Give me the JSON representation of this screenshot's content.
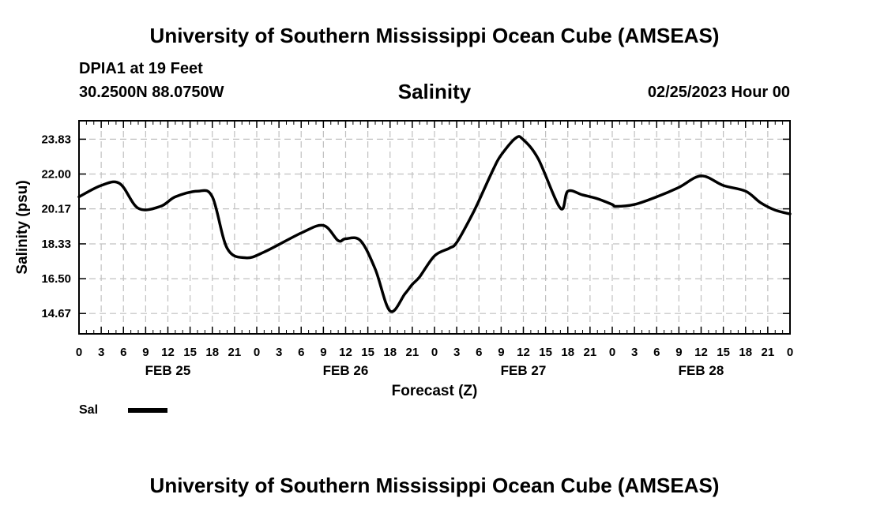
{
  "header": {
    "title": "University of Southern Mississippi Ocean Cube (AMSEAS)",
    "station": "DPIA1 at 19 Feet",
    "coords": "30.2500N  88.0750W",
    "variable": "Salinity",
    "run_time": "02/25/2023 Hour 00"
  },
  "footer": {
    "title": "University of Southern Mississippi Ocean Cube (AMSEAS)"
  },
  "legend": {
    "label": "Sal"
  },
  "colors": {
    "line": "#000000",
    "grid": "#c0c0c0"
  },
  "chart_data": {
    "type": "line",
    "title": "Salinity",
    "xlabel": "Forecast (Z)",
    "ylabel": "Salinity (psu)",
    "xlim": [
      0,
      96
    ],
    "ylim": [
      13.6,
      24.8
    ],
    "yticks": [
      14.67,
      16.5,
      18.33,
      20.17,
      22.0,
      23.83
    ],
    "ytick_labels": [
      "14.67",
      "16.50",
      "18.33",
      "20.17",
      "22.00",
      "23.83"
    ],
    "xticks": [
      0,
      3,
      6,
      9,
      12,
      15,
      18,
      21,
      24,
      27,
      30,
      33,
      36,
      39,
      42,
      45,
      48,
      51,
      54,
      57,
      60,
      63,
      66,
      69,
      72,
      75,
      78,
      81,
      84,
      87,
      90,
      93,
      96
    ],
    "xtick_labels": [
      "0",
      "3",
      "6",
      "9",
      "12",
      "15",
      "18",
      "21",
      "0",
      "3",
      "6",
      "9",
      "12",
      "15",
      "18",
      "21",
      "0",
      "3",
      "6",
      "9",
      "12",
      "15",
      "18",
      "21",
      "0",
      "3",
      "6",
      "9",
      "12",
      "15",
      "18",
      "21",
      "0"
    ],
    "date_labels": [
      {
        "x": 12,
        "label": "FEB 25"
      },
      {
        "x": 36,
        "label": "FEB 26"
      },
      {
        "x": 60,
        "label": "FEB 27"
      },
      {
        "x": 84,
        "label": "FEB 28"
      }
    ],
    "grid": true,
    "series": [
      {
        "name": "Sal",
        "x": [
          0,
          3,
          5.5,
          8,
          11,
          13,
          16,
          18,
          20,
          22.5,
          25,
          30,
          33,
          35,
          36,
          38,
          40,
          42,
          44,
          45,
          46,
          48,
          50,
          51,
          53,
          54,
          56,
          57,
          59,
          60,
          62,
          65,
          66,
          68,
          70,
          72,
          72.5,
          75,
          78,
          81,
          84,
          87,
          90,
          92,
          94,
          96
        ],
        "y": [
          20.8,
          21.4,
          21.5,
          20.2,
          20.3,
          20.8,
          21.1,
          20.8,
          18.1,
          17.6,
          17.9,
          18.9,
          19.3,
          18.5,
          18.6,
          18.5,
          17.0,
          14.8,
          15.7,
          16.2,
          16.6,
          17.7,
          18.1,
          18.4,
          19.8,
          20.6,
          22.3,
          23.0,
          23.9,
          23.8,
          22.8,
          20.2,
          21.1,
          20.9,
          20.7,
          20.4,
          20.3,
          20.4,
          20.8,
          21.3,
          21.9,
          21.4,
          21.1,
          20.5,
          20.1,
          19.9
        ]
      }
    ]
  }
}
